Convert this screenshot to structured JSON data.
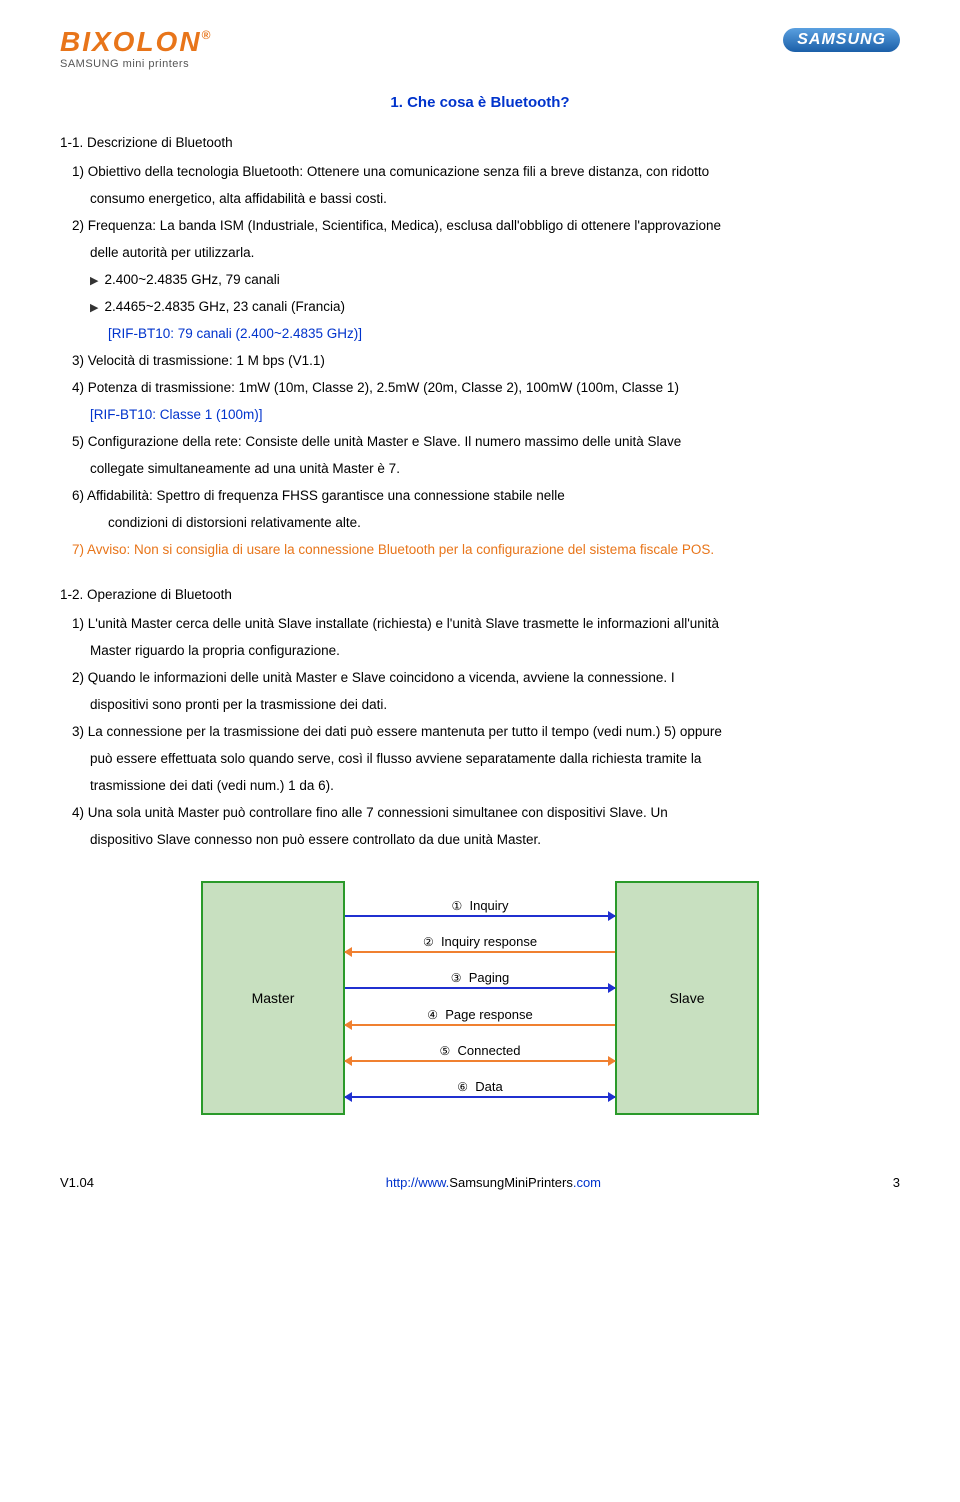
{
  "header": {
    "logo_name": "BIXOLON",
    "logo_sub": "SAMSUNG mini printers",
    "samsung": "SAMSUNG"
  },
  "title": "1. Che cosa è Bluetooth?",
  "s1": {
    "heading": "1-1. Descrizione di Bluetooth",
    "p1a": "1) Obiettivo della tecnologia Bluetooth: Ottenere una comunicazione senza fili a breve distanza, con ridotto",
    "p1b": "consumo energetico, alta affidabilità e bassi costi.",
    "p2a": "2) Frequenza: La banda ISM (Industriale, Scientifica, Medica), esclusa dall'obbligo di ottenere l'approvazione",
    "p2b": "delle autorità per utilizzarla.",
    "b1": "2.400~2.4835 GHz, 79 canali",
    "b2": "2.4465~2.4835 GHz, 23 canali (Francia)",
    "rif1": "[RIF-BT10: 79 canali (2.400~2.4835 GHz)]",
    "p3": "3) Velocità di trasmissione: 1 M bps (V1.1)",
    "p4": "4) Potenza di trasmissione: 1mW (10m, Classe 2), 2.5mW (20m, Classe 2), 100mW (100m, Classe 1)",
    "rif2": "[RIF-BT10: Classe 1 (100m)]",
    "p5a": "5) Configurazione della rete: Consiste delle unità Master e Slave. Il numero massimo delle unità Slave",
    "p5b": "collegate simultaneamente ad una unità Master è 7.",
    "p6a": "6) Affidabilità: Spettro di frequenza FHSS garantisce una connessione stabile nelle",
    "p6b": "condizioni di distorsioni relativamente alte.",
    "p7": "7) Avviso: Non si consiglia di usare la connessione Bluetooth per la configurazione del sistema fiscale POS."
  },
  "s2": {
    "heading": "1-2. Operazione di Bluetooth",
    "p1a": "1) L'unità Master cerca delle unità Slave installate (richiesta) e l'unità Slave trasmette le informazioni all'unità",
    "p1b": "Master riguardo la propria configurazione.",
    "p2a": "2) Quando le informazioni delle unità Master e Slave coincidono a vicenda,  avviene la connessione. I",
    "p2b": "dispositivi sono pronti per la trasmissione dei dati.",
    "p3a": "3) La connessione per la trasmissione dei dati può essere mantenuta per tutto il tempo (vedi num.) 5) oppure",
    "p3b": "può essere effettuata solo quando serve, così il flusso avviene separatamente dalla richiesta tramite la",
    "p3c": "trasmissione dei dati (vedi num.) 1 da 6).",
    "p4a": "4) Una sola unità Master può controllare fino alle 7 connessioni simultanee con dispositivi Slave. Un",
    "p4b": "dispositivo Slave connesso non può essere controllato da due unità Master."
  },
  "diagram": {
    "master": "Master",
    "slave": "Slave",
    "steps": {
      "s1": "Inquiry",
      "s2": "Inquiry response",
      "s3": "Paging",
      "s4": "Page response",
      "s5": "Connected",
      "s6": "Data"
    },
    "nums": {
      "n1": "①",
      "n2": "②",
      "n3": "③",
      "n4": "④",
      "n5": "⑤",
      "n6": "⑥"
    }
  },
  "footer": {
    "version": "V1.04",
    "url_prefix": "http://www.",
    "url_main": "SamsungMiniPrinters",
    "url_suffix": ".com",
    "page": "3"
  }
}
